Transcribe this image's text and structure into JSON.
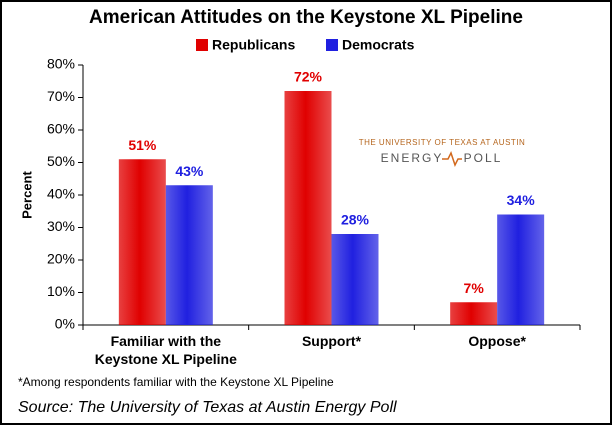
{
  "chart_data": {
    "type": "bar",
    "title": "American Attitudes on the Keystone XL Pipeline",
    "y_label": "Percent",
    "categories": [
      "Familiar with the Keystone XL Pipeline",
      "Support*",
      "Oppose*"
    ],
    "series": [
      {
        "name": "Republicans",
        "color": "#e00000",
        "values": [
          51,
          72,
          7
        ],
        "value_labels": [
          "51%",
          "72%",
          "7%"
        ]
      },
      {
        "name": "Democrats",
        "color": "#2020e0",
        "values": [
          43,
          28,
          34
        ],
        "value_labels": [
          "43%",
          "28%",
          "34%"
        ]
      }
    ],
    "ylim": [
      0,
      80
    ],
    "yticks": [
      {
        "value": 0,
        "label": "0%"
      },
      {
        "value": 10,
        "label": "10%"
      },
      {
        "value": 20,
        "label": "20%"
      },
      {
        "value": 30,
        "label": "30%"
      },
      {
        "value": 40,
        "label": "40%"
      },
      {
        "value": 50,
        "label": "50%"
      },
      {
        "value": 60,
        "label": "60%"
      },
      {
        "value": 70,
        "label": "70%"
      },
      {
        "value": 80,
        "label": "80%"
      }
    ],
    "grid": false,
    "footnote": "*Among respondents familiar with the Keystone XL Pipeline",
    "source": "Source: The University of Texas at Austin Energy Poll"
  },
  "logo": {
    "line1": "THE UNIVERSITY OF TEXAS AT AUSTIN",
    "word1": "ENERGY",
    "word2": "POLL"
  }
}
